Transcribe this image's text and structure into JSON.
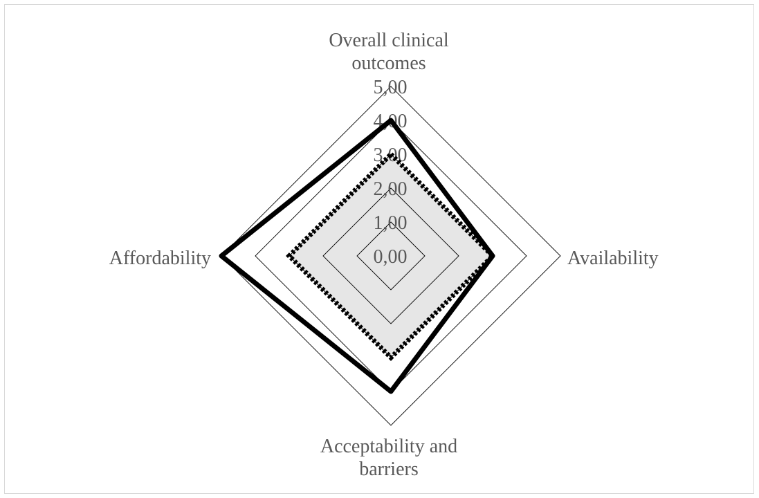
{
  "chart_data": {
    "type": "radar",
    "axes": [
      "Overall clinical outcomes",
      "Availability",
      "Acceptability and barriers",
      "Affordability"
    ],
    "axis_label_lines": [
      [
        "Overall clinical",
        "outcomes"
      ],
      [
        "Availability"
      ],
      [
        "Acceptability and",
        "barriers"
      ],
      [
        "Affordability"
      ]
    ],
    "range": [
      0,
      5
    ],
    "ticks": [
      "0,00",
      "1,00",
      "2,00",
      "3,00",
      "4,00",
      "5,00"
    ],
    "series": [
      {
        "values": [
          3.0,
          3.0,
          3.0,
          3.0
        ],
        "style": "filled",
        "fill": "#e6e6e6"
      },
      {
        "values": [
          4.0,
          3.0,
          4.0,
          5.0
        ],
        "style": "solid",
        "color": "#000000"
      },
      {
        "values": [
          3.0,
          3.0,
          3.0,
          3.0
        ],
        "style": "dotted",
        "color": "#000000"
      }
    ],
    "grid": true,
    "colors": {
      "grid": "#000000",
      "text": "#595959",
      "frame": "#d9d9d9"
    }
  }
}
